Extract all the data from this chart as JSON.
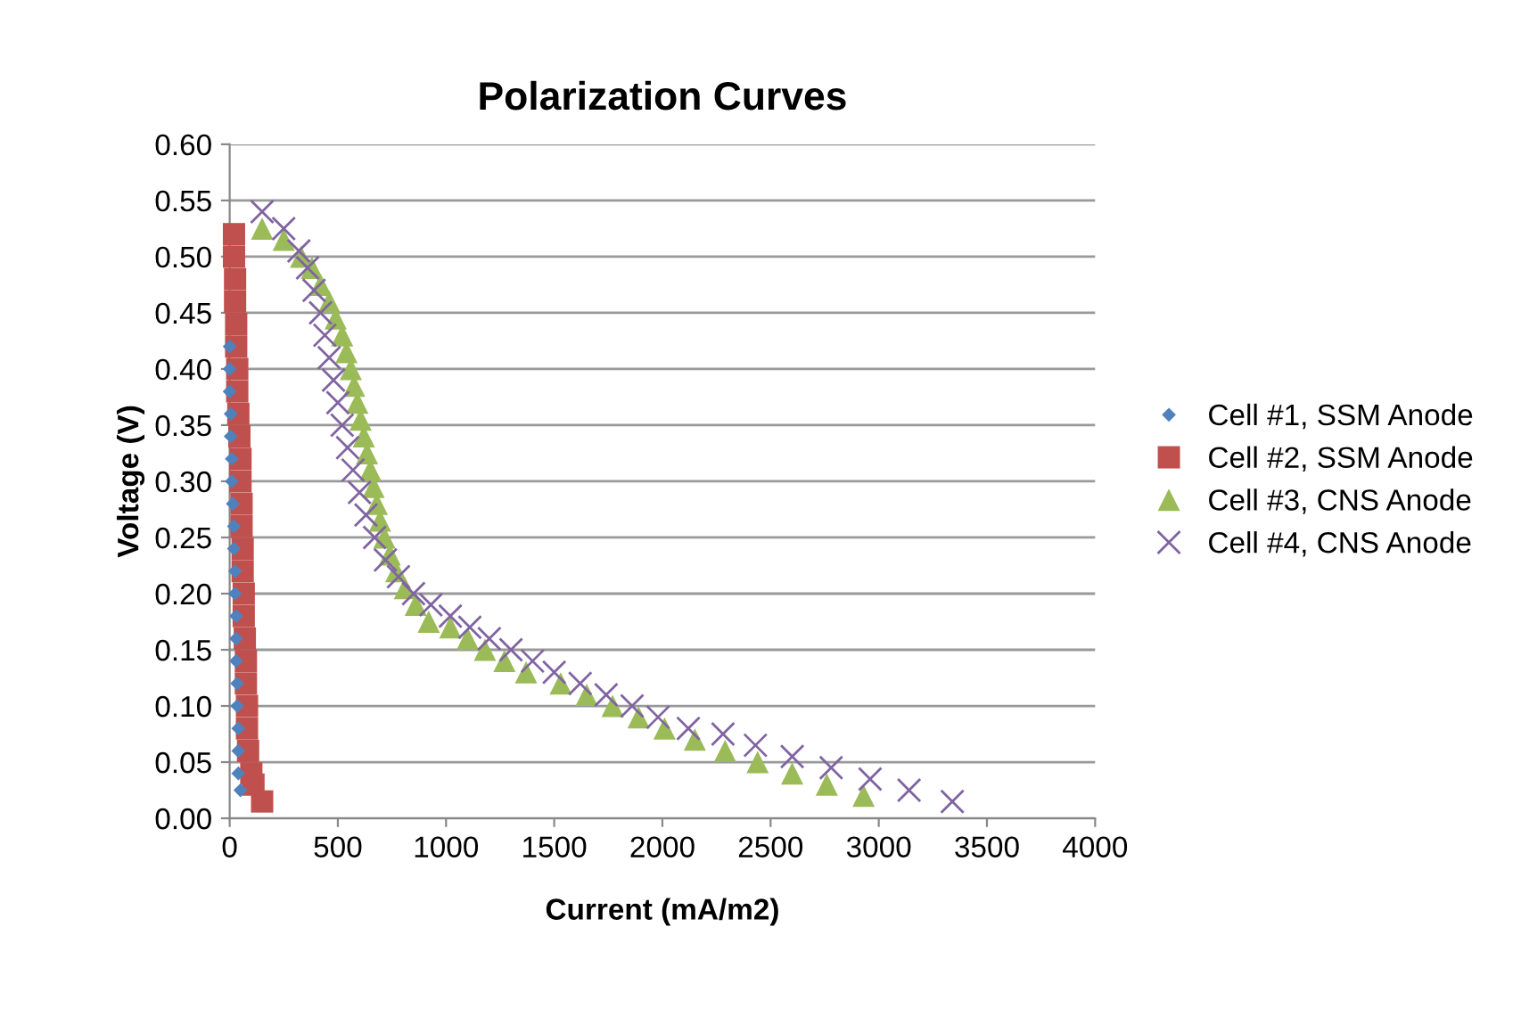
{
  "chart_data": {
    "type": "scatter",
    "title": "Polarization Curves",
    "xlabel": "Current (mA/m2)",
    "ylabel": "Voltage (V)",
    "xlim": [
      0,
      4000
    ],
    "xticks": [
      0,
      500,
      1000,
      1500,
      2000,
      2500,
      3000,
      3500,
      4000
    ],
    "ylim": [
      0,
      0.6
    ],
    "yticks": [
      {
        "value": 0,
        "label": "0.00"
      },
      {
        "value": 0.05,
        "label": "0.05"
      },
      {
        "value": 0.1,
        "label": "0.10"
      },
      {
        "value": 0.15,
        "label": "0.15"
      },
      {
        "value": 0.2,
        "label": "0.20"
      },
      {
        "value": 0.25,
        "label": "0.25"
      },
      {
        "value": 0.3,
        "label": "0.30"
      },
      {
        "value": 0.35,
        "label": "0.35"
      },
      {
        "value": 0.4,
        "label": "0.40"
      },
      {
        "value": 0.45,
        "label": "0.45"
      },
      {
        "value": 0.5,
        "label": "0.50"
      },
      {
        "value": 0.55,
        "label": "0.55"
      },
      {
        "value": 0.6,
        "label": "0.60"
      }
    ],
    "grid": "y",
    "legend": "right",
    "series": [
      {
        "name": "Cell #1, SSM Anode",
        "color": "#4f81bd",
        "marker": "diamond",
        "x": [
          0,
          0,
          0,
          5,
          5,
          10,
          10,
          15,
          20,
          20,
          25,
          25,
          30,
          30,
          30,
          35,
          35,
          40,
          40,
          40,
          50
        ],
        "values": [
          0.42,
          0.4,
          0.38,
          0.36,
          0.34,
          0.32,
          0.3,
          0.28,
          0.26,
          0.24,
          0.22,
          0.2,
          0.18,
          0.16,
          0.14,
          0.12,
          0.1,
          0.08,
          0.06,
          0.04,
          0.025
        ]
      },
      {
        "name": "Cell #2, SSM Anode",
        "color": "#c0504d",
        "marker": "square",
        "x": [
          20,
          20,
          25,
          25,
          30,
          30,
          35,
          35,
          40,
          45,
          50,
          50,
          55,
          55,
          60,
          60,
          65,
          65,
          70,
          75,
          75,
          80,
          80,
          85,
          100,
          110,
          150
        ],
        "values": [
          0.52,
          0.5,
          0.48,
          0.46,
          0.44,
          0.42,
          0.4,
          0.38,
          0.36,
          0.34,
          0.32,
          0.3,
          0.28,
          0.26,
          0.24,
          0.22,
          0.2,
          0.18,
          0.16,
          0.14,
          0.12,
          0.1,
          0.08,
          0.06,
          0.04,
          0.03,
          0.015
        ]
      },
      {
        "name": "Cell #3, CNS Anode",
        "color": "#9bbb59",
        "marker": "triangle",
        "x": [
          150,
          250,
          330,
          380,
          420,
          460,
          490,
          520,
          540,
          560,
          575,
          590,
          605,
          620,
          635,
          650,
          665,
          680,
          695,
          715,
          740,
          770,
          810,
          860,
          920,
          1020,
          1100,
          1180,
          1270,
          1370,
          1530,
          1650,
          1770,
          1890,
          2010,
          2150,
          2290,
          2440,
          2600,
          2760,
          2930
        ],
        "values": [
          0.525,
          0.515,
          0.5,
          0.49,
          0.475,
          0.46,
          0.445,
          0.43,
          0.415,
          0.4,
          0.385,
          0.37,
          0.355,
          0.34,
          0.325,
          0.31,
          0.295,
          0.28,
          0.265,
          0.25,
          0.235,
          0.22,
          0.205,
          0.19,
          0.175,
          0.17,
          0.16,
          0.15,
          0.14,
          0.13,
          0.12,
          0.11,
          0.1,
          0.09,
          0.08,
          0.07,
          0.06,
          0.05,
          0.04,
          0.03,
          0.02
        ]
      },
      {
        "name": "Cell #4, CNS Anode",
        "color": "#8064a2",
        "marker": "cross",
        "x": [
          150,
          250,
          320,
          360,
          390,
          420,
          440,
          460,
          480,
          500,
          520,
          545,
          570,
          600,
          630,
          670,
          720,
          780,
          850,
          930,
          1020,
          1110,
          1200,
          1300,
          1400,
          1500,
          1620,
          1740,
          1860,
          1980,
          2120,
          2280,
          2430,
          2600,
          2780,
          2960,
          3140,
          3340
        ],
        "values": [
          0.54,
          0.525,
          0.505,
          0.49,
          0.47,
          0.45,
          0.43,
          0.41,
          0.39,
          0.37,
          0.35,
          0.33,
          0.31,
          0.29,
          0.27,
          0.25,
          0.23,
          0.215,
          0.2,
          0.19,
          0.18,
          0.17,
          0.16,
          0.15,
          0.14,
          0.13,
          0.12,
          0.11,
          0.1,
          0.09,
          0.08,
          0.075,
          0.065,
          0.055,
          0.045,
          0.035,
          0.025,
          0.015
        ]
      }
    ]
  }
}
